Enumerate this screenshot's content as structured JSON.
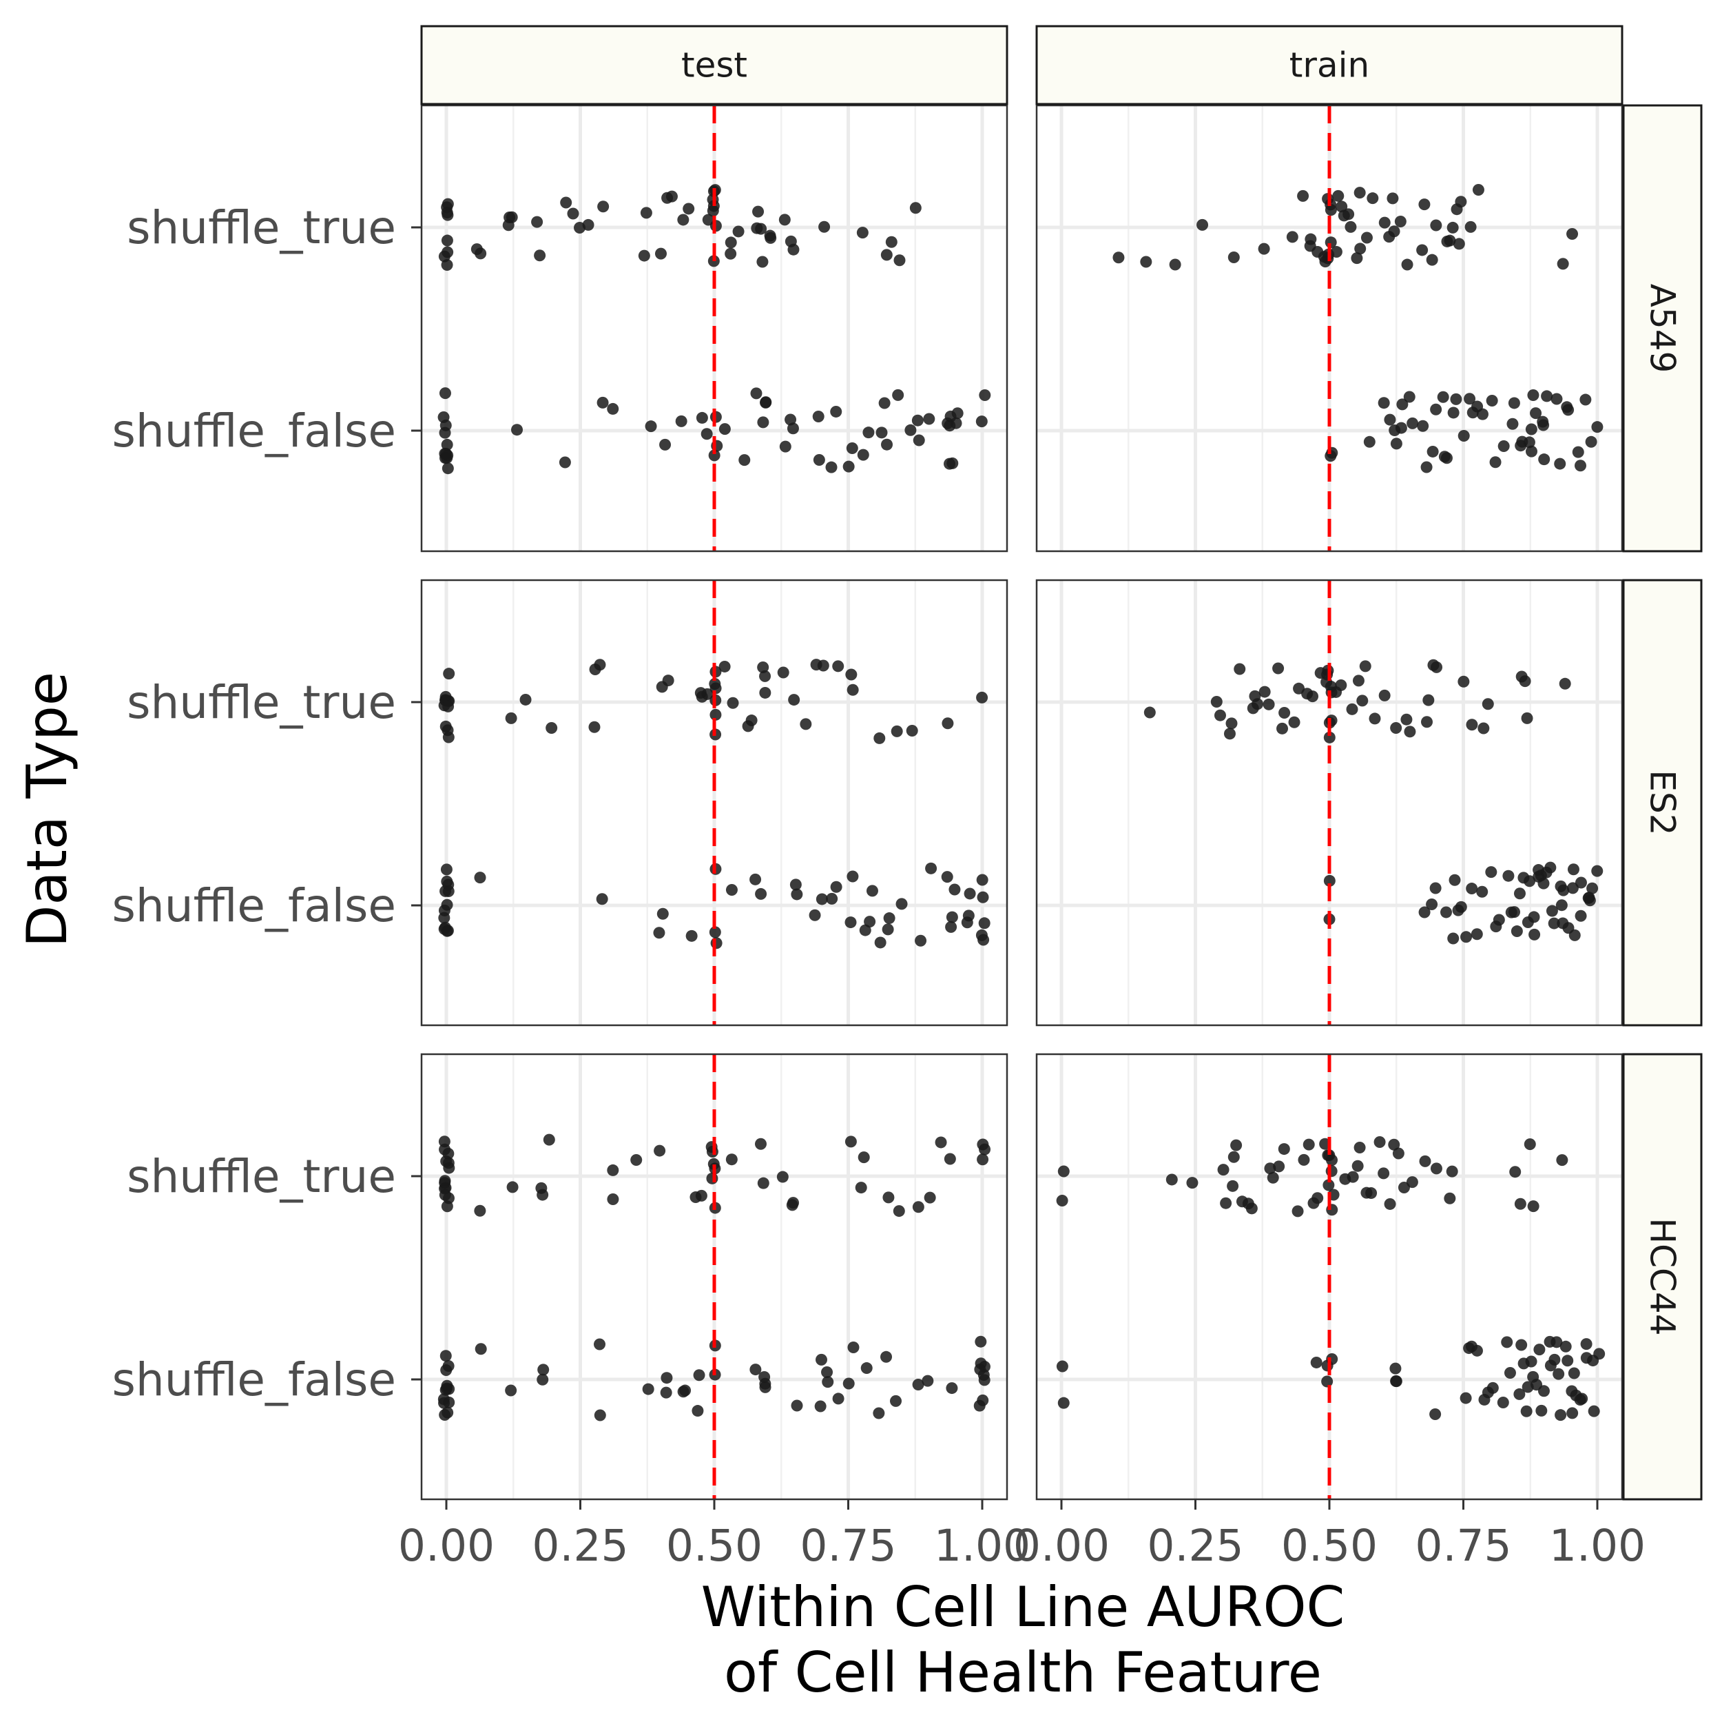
{
  "chart_data": {
    "type": "scatter",
    "xlabel": [
      "Within Cell Line AUROC",
      "of Cell Health Feature"
    ],
    "ylabel": "Data Type",
    "xlim": [
      0,
      1
    ],
    "x_ticks": [
      "0.00",
      "0.25",
      "0.50",
      "0.75",
      "1.00"
    ],
    "y_categories": [
      "shuffle_true",
      "shuffle_false"
    ],
    "reference_line": {
      "x": 0.5,
      "color": "#ff0000",
      "style": "dashed"
    },
    "facet_cols": [
      "test",
      "train"
    ],
    "facet_rows": [
      "A549",
      "ES2",
      "HCC44"
    ],
    "grid": true,
    "point_color": "#1a1a1a",
    "panels": {
      "A549": {
        "test": {
          "shuffle_true": [
            0,
            0,
            0,
            0,
            0,
            0,
            0,
            0,
            0.06,
            0.06,
            0.12,
            0.12,
            0.12,
            0.17,
            0.17,
            0.22,
            0.24,
            0.25,
            0.26,
            0.29,
            0.37,
            0.37,
            0.4,
            0.41,
            0.42,
            0.44,
            0.45,
            0.49,
            0.5,
            0.5,
            0.5,
            0.5,
            0.5,
            0.5,
            0.5,
            0.53,
            0.53,
            0.55,
            0.58,
            0.58,
            0.59,
            0.59,
            0.6,
            0.61,
            0.63,
            0.64,
            0.65,
            0.7,
            0.78,
            0.82,
            0.83,
            0.85,
            0.88
          ],
          "shuffle_false": [
            0,
            0,
            0,
            0,
            0,
            0,
            0,
            0,
            0,
            0,
            0,
            0.13,
            0.22,
            0.29,
            0.31,
            0.38,
            0.41,
            0.44,
            0.48,
            0.49,
            0.5,
            0.5,
            0.5,
            0.52,
            0.56,
            0.58,
            0.59,
            0.6,
            0.6,
            0.63,
            0.64,
            0.65,
            0.69,
            0.7,
            0.72,
            0.73,
            0.75,
            0.76,
            0.78,
            0.79,
            0.81,
            0.82,
            0.82,
            0.84,
            0.87,
            0.88,
            0.88,
            0.9,
            0.94,
            0.94,
            0.94,
            0.95,
            0.95,
            0.94,
            0.94,
            1.0,
            1.0
          ]
        },
        "train": {
          "shuffle_true": [
            0.11,
            0.16,
            0.21,
            0.26,
            0.32,
            0.38,
            0.43,
            0.45,
            0.46,
            0.47,
            0.48,
            0.49,
            0.49,
            0.5,
            0.5,
            0.5,
            0.5,
            0.5,
            0.5,
            0.51,
            0.52,
            0.52,
            0.53,
            0.54,
            0.54,
            0.55,
            0.56,
            0.56,
            0.57,
            0.58,
            0.6,
            0.61,
            0.62,
            0.62,
            0.63,
            0.65,
            0.67,
            0.68,
            0.69,
            0.7,
            0.72,
            0.72,
            0.73,
            0.74,
            0.74,
            0.75,
            0.76,
            0.78,
            0.94,
            0.95
          ],
          "shuffle_false": [
            0.5,
            0.5,
            0.57,
            0.6,
            0.61,
            0.62,
            0.63,
            0.63,
            0.64,
            0.65,
            0.65,
            0.67,
            0.68,
            0.69,
            0.7,
            0.71,
            0.72,
            0.72,
            0.73,
            0.74,
            0.75,
            0.76,
            0.77,
            0.78,
            0.79,
            0.8,
            0.81,
            0.83,
            0.84,
            0.85,
            0.86,
            0.87,
            0.88,
            0.88,
            0.89,
            0.9,
            0.9,
            0.91,
            0.92,
            0.93,
            0.94,
            0.95,
            0.96,
            0.97,
            0.98,
            0.99,
            1.0,
            0.86,
            0.88,
            0.9
          ]
        }
      },
      "ES2": {
        "test": {
          "shuffle_true": [
            0,
            0,
            0,
            0,
            0,
            0,
            0,
            0,
            0,
            0,
            0,
            0.12,
            0.15,
            0.2,
            0.28,
            0.28,
            0.29,
            0.4,
            0.41,
            0.47,
            0.48,
            0.49,
            0.5,
            0.5,
            0.5,
            0.5,
            0.5,
            0.5,
            0.52,
            0.53,
            0.56,
            0.57,
            0.59,
            0.59,
            0.6,
            0.63,
            0.65,
            0.67,
            0.69,
            0.7,
            0.73,
            0.76,
            0.76,
            0.81,
            0.84,
            0.87,
            0.94,
            1.0
          ],
          "shuffle_false": [
            0,
            0,
            0,
            0,
            0,
            0,
            0,
            0,
            0,
            0,
            0,
            0,
            0.06,
            0.29,
            0.4,
            0.4,
            0.46,
            0.5,
            0.5,
            0.5,
            0.53,
            0.58,
            0.59,
            0.65,
            0.65,
            0.69,
            0.7,
            0.72,
            0.73,
            0.75,
            0.76,
            0.78,
            0.79,
            0.8,
            0.81,
            0.82,
            0.83,
            0.85,
            0.88,
            0.9,
            0.93,
            0.94,
            0.94,
            0.95,
            0.97,
            0.97,
            0.98,
            1.0,
            1.0,
            1.0,
            1.0,
            1.0
          ]
        },
        "train": {
          "shuffle_true": [
            0.16,
            0.29,
            0.3,
            0.31,
            0.32,
            0.33,
            0.36,
            0.36,
            0.37,
            0.38,
            0.39,
            0.4,
            0.41,
            0.42,
            0.43,
            0.44,
            0.46,
            0.47,
            0.48,
            0.49,
            0.5,
            0.5,
            0.5,
            0.5,
            0.5,
            0.5,
            0.5,
            0.51,
            0.52,
            0.54,
            0.55,
            0.56,
            0.57,
            0.58,
            0.6,
            0.62,
            0.64,
            0.65,
            0.68,
            0.69,
            0.69,
            0.7,
            0.75,
            0.77,
            0.79,
            0.8,
            0.86,
            0.87,
            0.87,
            0.94
          ],
          "shuffle_false": [
            0.5,
            0.5,
            0.68,
            0.69,
            0.7,
            0.72,
            0.73,
            0.73,
            0.74,
            0.75,
            0.76,
            0.77,
            0.78,
            0.79,
            0.8,
            0.81,
            0.82,
            0.83,
            0.84,
            0.85,
            0.85,
            0.86,
            0.86,
            0.87,
            0.87,
            0.88,
            0.88,
            0.89,
            0.89,
            0.9,
            0.9,
            0.91,
            0.91,
            0.92,
            0.92,
            0.93,
            0.93,
            0.94,
            0.94,
            0.95,
            0.95,
            0.96,
            0.96,
            0.97,
            0.97,
            0.98,
            0.98,
            0.99,
            0.99,
            1.0
          ]
        }
      },
      "HCC44": {
        "test": {
          "shuffle_true": [
            0,
            0,
            0,
            0,
            0,
            0,
            0,
            0,
            0,
            0,
            0,
            0,
            0,
            0.06,
            0.12,
            0.18,
            0.18,
            0.19,
            0.31,
            0.31,
            0.35,
            0.4,
            0.47,
            0.48,
            0.5,
            0.5,
            0.5,
            0.5,
            0.5,
            0.5,
            0.53,
            0.59,
            0.59,
            0.63,
            0.65,
            0.65,
            0.76,
            0.77,
            0.78,
            0.82,
            0.84,
            0.88,
            0.9,
            0.92,
            0.94,
            1.0,
            1.0,
            1.0
          ],
          "shuffle_false": [
            0,
            0,
            0,
            0,
            0,
            0,
            0,
            0,
            0,
            0,
            0,
            0,
            0.06,
            0.12,
            0.18,
            0.18,
            0.29,
            0.29,
            0.38,
            0.41,
            0.41,
            0.44,
            0.45,
            0.47,
            0.47,
            0.5,
            0.5,
            0.58,
            0.59,
            0.6,
            0.6,
            0.65,
            0.7,
            0.7,
            0.71,
            0.71,
            0.73,
            0.75,
            0.76,
            0.78,
            0.81,
            0.82,
            0.84,
            0.88,
            0.9,
            0.94,
            1.0,
            1.0,
            1.0,
            1.0,
            1.0,
            1.0,
            1.0,
            1.0
          ]
        },
        "train": {
          "shuffle_true": [
            0,
            0,
            0.21,
            0.24,
            0.3,
            0.31,
            0.32,
            0.32,
            0.33,
            0.34,
            0.35,
            0.36,
            0.39,
            0.4,
            0.41,
            0.42,
            0.44,
            0.45,
            0.46,
            0.47,
            0.48,
            0.49,
            0.5,
            0.5,
            0.5,
            0.5,
            0.5,
            0.5,
            0.51,
            0.53,
            0.54,
            0.55,
            0.56,
            0.57,
            0.58,
            0.59,
            0.6,
            0.61,
            0.62,
            0.63,
            0.64,
            0.65,
            0.68,
            0.7,
            0.72,
            0.73,
            0.85,
            0.86,
            0.87,
            0.88,
            0.93
          ],
          "shuffle_false": [
            0,
            0,
            0.48,
            0.5,
            0.5,
            0.5,
            0.62,
            0.62,
            0.63,
            0.7,
            0.75,
            0.76,
            0.77,
            0.78,
            0.79,
            0.8,
            0.81,
            0.82,
            0.83,
            0.84,
            0.85,
            0.86,
            0.86,
            0.87,
            0.87,
            0.88,
            0.88,
            0.89,
            0.89,
            0.9,
            0.9,
            0.91,
            0.91,
            0.92,
            0.92,
            0.93,
            0.93,
            0.94,
            0.94,
            0.95,
            0.95,
            0.96,
            0.96,
            0.97,
            0.97,
            0.98,
            0.98,
            0.99,
            0.99,
            1.0
          ]
        }
      }
    }
  }
}
